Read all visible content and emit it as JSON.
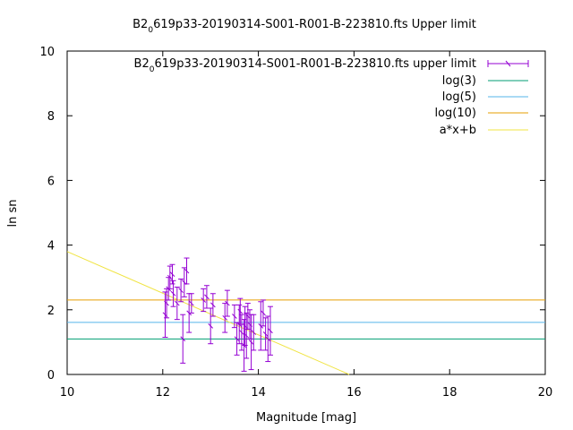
{
  "chart_data": {
    "type": "scatter",
    "title_main": "B2",
    "title_sub": "0",
    "title_rest": "619p33-20190314-S001-R001-B-223810.fts Upper limit",
    "xlabel": "Magnitude [mag]",
    "ylabel": "ln sn",
    "xlim": [
      10,
      20
    ],
    "ylim": [
      0,
      10
    ],
    "xticks": [
      "10",
      "12",
      "14",
      "16",
      "18",
      "20"
    ],
    "yticks": [
      "0",
      "2",
      "4",
      "6",
      "8",
      "10"
    ],
    "grid": false,
    "legend_position": "top-right",
    "colors": {
      "points": "#9400d3",
      "log3": "#009e73",
      "log5": "#56b4e9",
      "log10": "#e69f00",
      "fit": "#f0e442"
    },
    "legend": {
      "points_main": "B2",
      "points_sub": "0",
      "points_rest": "619p33-20190314-S001-R001-B-223810.fts upper limit",
      "log3": "log(3)",
      "log5": "log(5)",
      "log10": "log(10)",
      "fit": "a*x+b"
    },
    "hlines": [
      {
        "key": "log3",
        "y": 1.0986
      },
      {
        "key": "log5",
        "y": 1.6094
      },
      {
        "key": "log10",
        "y": 2.3026
      }
    ],
    "fit_line": {
      "x": [
        10,
        15.9
      ],
      "y": [
        3.8,
        0
      ]
    },
    "series": [
      {
        "name": "B2 0 619p33-20190314-S001-R001-B-223810.fts upper limit",
        "points": [
          {
            "x": 12.05,
            "y": 1.85,
            "yerr": 0.7
          },
          {
            "x": 12.08,
            "y": 2.2,
            "yerr": 0.45
          },
          {
            "x": 12.12,
            "y": 2.65,
            "yerr": 0.35
          },
          {
            "x": 12.15,
            "y": 3.0,
            "yerr": 0.35
          },
          {
            "x": 12.2,
            "y": 3.1,
            "yerr": 0.3
          },
          {
            "x": 12.22,
            "y": 2.5,
            "yerr": 0.4
          },
          {
            "x": 12.3,
            "y": 2.2,
            "yerr": 0.5
          },
          {
            "x": 12.38,
            "y": 2.6,
            "yerr": 0.35
          },
          {
            "x": 12.42,
            "y": 1.1,
            "yerr": 0.75
          },
          {
            "x": 12.45,
            "y": 2.85,
            "yerr": 0.45
          },
          {
            "x": 12.5,
            "y": 3.2,
            "yerr": 0.4
          },
          {
            "x": 12.55,
            "y": 1.9,
            "yerr": 0.6
          },
          {
            "x": 12.6,
            "y": 2.2,
            "yerr": 0.3
          },
          {
            "x": 12.85,
            "y": 2.3,
            "yerr": 0.35
          },
          {
            "x": 12.92,
            "y": 2.4,
            "yerr": 0.35
          },
          {
            "x": 13.0,
            "y": 1.5,
            "yerr": 0.55
          },
          {
            "x": 13.05,
            "y": 2.15,
            "yerr": 0.35
          },
          {
            "x": 13.3,
            "y": 1.75,
            "yerr": 0.45
          },
          {
            "x": 13.35,
            "y": 2.2,
            "yerr": 0.4
          },
          {
            "x": 13.5,
            "y": 1.8,
            "yerr": 0.35
          },
          {
            "x": 13.55,
            "y": 1.1,
            "yerr": 0.5
          },
          {
            "x": 13.6,
            "y": 1.55,
            "yerr": 0.6
          },
          {
            "x": 13.62,
            "y": 1.95,
            "yerr": 0.4
          },
          {
            "x": 13.65,
            "y": 1.3,
            "yerr": 0.55
          },
          {
            "x": 13.7,
            "y": 0.9,
            "yerr": 0.8
          },
          {
            "x": 13.72,
            "y": 1.5,
            "yerr": 0.6
          },
          {
            "x": 13.75,
            "y": 1.2,
            "yerr": 0.7
          },
          {
            "x": 13.78,
            "y": 1.8,
            "yerr": 0.4
          },
          {
            "x": 13.82,
            "y": 1.55,
            "yerr": 0.45
          },
          {
            "x": 13.85,
            "y": 1.0,
            "yerr": 0.85
          },
          {
            "x": 13.9,
            "y": 1.3,
            "yerr": 0.55
          },
          {
            "x": 14.05,
            "y": 1.5,
            "yerr": 0.75
          },
          {
            "x": 14.1,
            "y": 1.9,
            "yerr": 0.4
          },
          {
            "x": 14.15,
            "y": 1.25,
            "yerr": 0.5
          },
          {
            "x": 14.2,
            "y": 1.1,
            "yerr": 0.7
          },
          {
            "x": 14.25,
            "y": 1.35,
            "yerr": 0.75
          }
        ]
      }
    ]
  }
}
